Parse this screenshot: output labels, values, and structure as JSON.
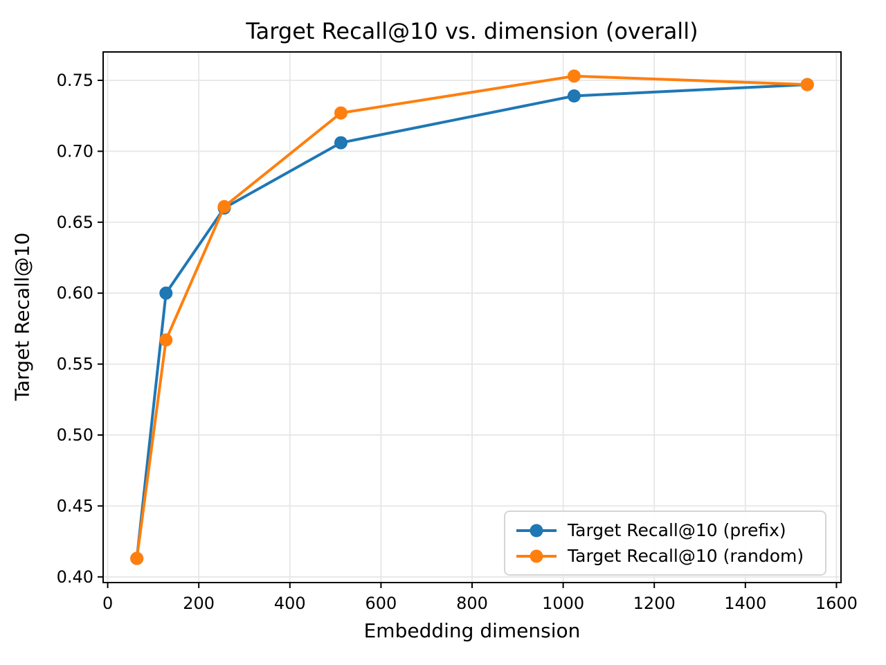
{
  "figure": {
    "background": "#ffffff",
    "text_color": "#000000",
    "grid_color": "#e6e6e6",
    "spine_color": "#000000",
    "legend_border_color": "#d5d5d5"
  },
  "chart_data": {
    "type": "line",
    "title": "Target Recall@10 vs. dimension (overall)",
    "xlabel": "Embedding dimension",
    "ylabel": "Target Recall@10",
    "x": [
      64,
      128,
      256,
      512,
      1024,
      1536
    ],
    "series": [
      {
        "name": "Target Recall@10 (prefix)",
        "color": "#1f77b4",
        "values": [
          0.413,
          0.6,
          0.66,
          0.706,
          0.739,
          0.747
        ]
      },
      {
        "name": "Target Recall@10 (random)",
        "color": "#ff7f0e",
        "values": [
          0.413,
          0.567,
          0.661,
          0.727,
          0.753,
          0.747
        ]
      }
    ],
    "xlim": [
      -10,
      1610
    ],
    "ylim": [
      0.396,
      0.77
    ],
    "x_ticks": [
      0,
      200,
      400,
      600,
      800,
      1000,
      1200,
      1400,
      1600
    ],
    "y_ticks": [
      0.4,
      0.45,
      0.5,
      0.55,
      0.6,
      0.65,
      0.7,
      0.75
    ],
    "y_tick_decimals": 2,
    "grid": true,
    "marker": "circle",
    "marker_radius": 9.5,
    "line_width": 4,
    "legend_position": "lower right"
  }
}
